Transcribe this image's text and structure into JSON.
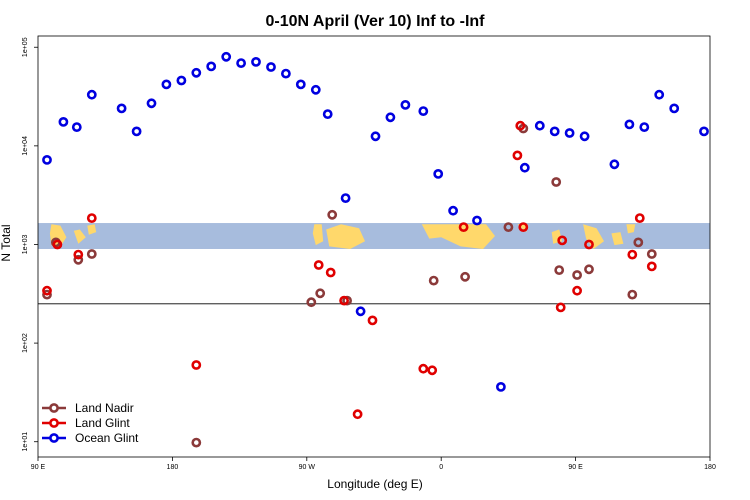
{
  "chart_data": {
    "type": "scatter",
    "title": "0-10N April (Ver 10)   Inf to -Inf",
    "xlabel": "Longitude (deg E)",
    "ylabel": "N Total",
    "x_domain_deg_from_90E": [
      0,
      450
    ],
    "x_ticks": [
      {
        "pos": 0,
        "label": "90 E"
      },
      {
        "pos": 90,
        "label": "180"
      },
      {
        "pos": 180,
        "label": "90 W"
      },
      {
        "pos": 270,
        "label": "0"
      },
      {
        "pos": 360,
        "label": "90 E"
      },
      {
        "pos": 450,
        "label": "180"
      }
    ],
    "y_scale": "log",
    "ylim": [
      7,
      130000
    ],
    "y_ticks": [
      {
        "value": 10,
        "label": "1e+01"
      },
      {
        "value": 100,
        "label": "1e+02"
      },
      {
        "value": 1000,
        "label": "1e+03"
      },
      {
        "value": 10000,
        "label": "1e+04"
      },
      {
        "value": 100000,
        "label": "1e+05"
      }
    ],
    "reference_line_y": 250,
    "band_y_range": [
      900,
      1650
    ],
    "band_color": "#a7bcdd",
    "land_color": "#ffd86b",
    "legend_position": "bottom-left",
    "series": [
      {
        "name": "Land Nadir",
        "color": "#8b3a3a",
        "x": [
          6,
          12,
          27,
          36,
          106,
          183,
          189,
          197,
          207,
          265,
          286,
          315,
          325,
          347,
          349,
          361,
          369,
          398,
          402,
          411
        ],
        "y": [
          310,
          1050,
          700,
          800,
          9.8,
          260,
          320,
          2000,
          270,
          430,
          470,
          1500,
          15000,
          4300,
          550,
          490,
          560,
          310,
          1050,
          800
        ]
      },
      {
        "name": "Land Glint",
        "color": "#e00000",
        "x": [
          6,
          13,
          27,
          36,
          106,
          188,
          196,
          205,
          214,
          224,
          258,
          264,
          285,
          321,
          323,
          325,
          350,
          351,
          361,
          369,
          398,
          403,
          411
        ],
        "y": [
          340,
          1000,
          790,
          1850,
          60,
          620,
          520,
          270,
          19,
          170,
          55,
          53,
          1500,
          8000,
          16000,
          1500,
          230,
          1100,
          340,
          1000,
          790,
          1850,
          600
        ]
      },
      {
        "name": "Ocean Glint",
        "color": "#0000e0",
        "x": [
          6,
          17,
          26,
          36,
          56,
          66,
          76,
          86,
          96,
          106,
          116,
          126,
          136,
          146,
          156,
          166,
          176,
          186,
          194,
          206,
          216,
          226,
          236,
          246,
          258,
          268,
          278,
          294,
          310,
          326,
          336,
          346,
          356,
          366,
          386,
          396,
          406,
          416,
          426,
          446
        ],
        "y": [
          7200,
          17500,
          15500,
          33000,
          24000,
          14000,
          27000,
          42000,
          46000,
          55000,
          64000,
          80000,
          69000,
          71000,
          63000,
          54000,
          42000,
          37000,
          21000,
          2950,
          210,
          12500,
          19500,
          26000,
          22500,
          5200,
          2200,
          1750,
          36,
          6000,
          16000,
          14000,
          13500,
          12500,
          6500,
          16500,
          15500,
          33000,
          24000,
          14000
        ]
      }
    ]
  }
}
